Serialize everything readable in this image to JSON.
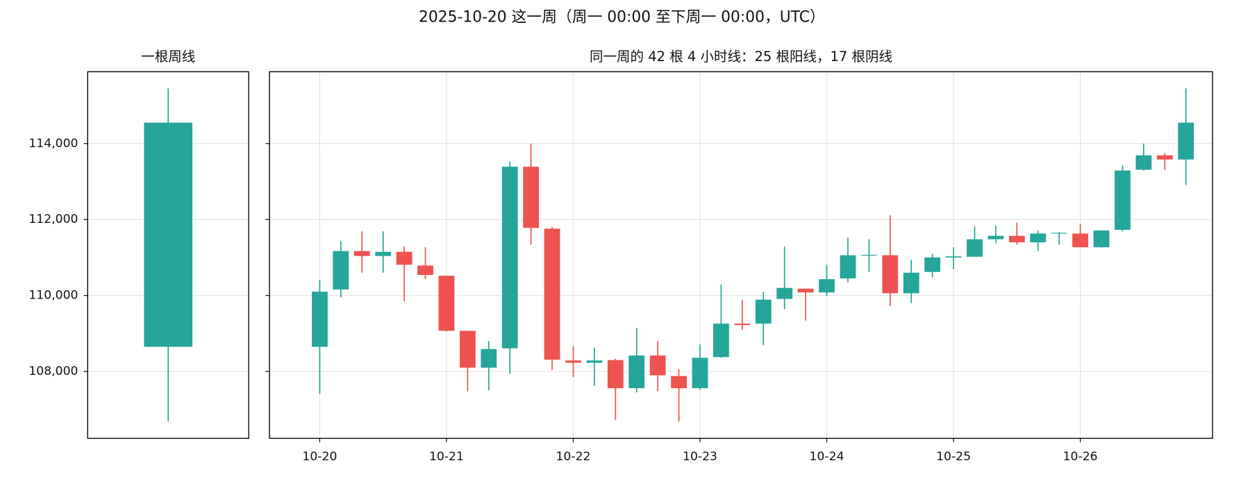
{
  "title": "2025-10-20 这一周（周一 00:00 至下周一 00:00，UTC）",
  "chart_data": [
    {
      "type": "candlestick",
      "title": "一根周线",
      "up_color": "#26a69a",
      "down_color": "#ef5350",
      "open": [
        108650
      ],
      "high": [
        115450
      ],
      "low": [
        106680
      ],
      "close": [
        114550
      ],
      "ylim": [
        106240,
        115890
      ],
      "yticks": [
        {
          "value": 108000,
          "label": "108,000"
        },
        {
          "value": 110000,
          "label": "110,000"
        },
        {
          "value": 112000,
          "label": "112,000"
        },
        {
          "value": 114000,
          "label": "114,000"
        }
      ],
      "grid": true
    },
    {
      "type": "candlestick",
      "title": "同一周的 42 根 4 小时线：25 根阳线，17 根阴线",
      "up_color": "#26a69a",
      "down_color": "#ef5350",
      "x": [
        0,
        1,
        2,
        3,
        4,
        5,
        6,
        7,
        8,
        9,
        10,
        11,
        12,
        13,
        14,
        15,
        16,
        17,
        18,
        19,
        20,
        21,
        22,
        23,
        24,
        25,
        26,
        27,
        28,
        29,
        30,
        31,
        32,
        33,
        34,
        35,
        36,
        37,
        38,
        39,
        40,
        41
      ],
      "open": [
        108650,
        110160,
        111170,
        111040,
        111150,
        110790,
        110520,
        109070,
        108100,
        108610,
        113390,
        111760,
        108290,
        108230,
        108300,
        107560,
        108420,
        107880,
        107560,
        108380,
        109260,
        109260,
        109910,
        110180,
        110080,
        110450,
        111060,
        111060,
        110060,
        110620,
        111000,
        111020,
        111480,
        111570,
        111400,
        111630,
        111630,
        111270,
        111730,
        113310,
        113690,
        113580
      ],
      "high": [
        110410,
        111440,
        111690,
        111690,
        111290,
        111270,
        110520,
        109070,
        108800,
        113520,
        114000,
        111800,
        108670,
        108630,
        108330,
        109150,
        108800,
        108060,
        108710,
        110290,
        109890,
        110100,
        111290,
        110180,
        110810,
        111520,
        111480,
        112110,
        110940,
        111100,
        111270,
        111820,
        111840,
        111920,
        111710,
        111670,
        111880,
        111720,
        113430,
        114000,
        113750,
        115450
      ],
      "low": [
        107410,
        109950,
        110600,
        110600,
        109850,
        110430,
        109050,
        107480,
        107500,
        107940,
        111340,
        108040,
        107850,
        107620,
        106720,
        107450,
        107480,
        106680,
        107520,
        108360,
        109090,
        108690,
        109640,
        109340,
        109990,
        110350,
        110620,
        109720,
        109800,
        110480,
        110690,
        111020,
        111380,
        111340,
        111170,
        111340,
        111270,
        111260,
        111690,
        113290,
        113310,
        112910
      ],
      "close": [
        110100,
        111170,
        111040,
        111150,
        110810,
        110540,
        109070,
        108100,
        108590,
        113390,
        111780,
        108310,
        108230,
        108290,
        107560,
        108420,
        107900,
        107560,
        108360,
        109260,
        109220,
        109890,
        110200,
        110080,
        110430,
        111060,
        111070,
        110060,
        110600,
        111000,
        111030,
        111480,
        111570,
        111400,
        111630,
        111650,
        111270,
        111710,
        113290,
        113690,
        113580,
        114550
      ],
      "xlim": [
        -2.38,
        42.26
      ],
      "xticks": [
        {
          "value": 0,
          "label": "10-20"
        },
        {
          "value": 6,
          "label": "10-21"
        },
        {
          "value": 12,
          "label": "10-22"
        },
        {
          "value": 18,
          "label": "10-23"
        },
        {
          "value": 24,
          "label": "10-24"
        },
        {
          "value": 30,
          "label": "10-25"
        },
        {
          "value": 36,
          "label": "10-26"
        }
      ],
      "ylim": [
        106240,
        115890
      ],
      "yticks": [
        {
          "value": 108000,
          "label": "108,000"
        },
        {
          "value": 110000,
          "label": "110,000"
        },
        {
          "value": 112000,
          "label": "112,000"
        },
        {
          "value": 114000,
          "label": "114,000"
        }
      ],
      "grid": true
    }
  ]
}
